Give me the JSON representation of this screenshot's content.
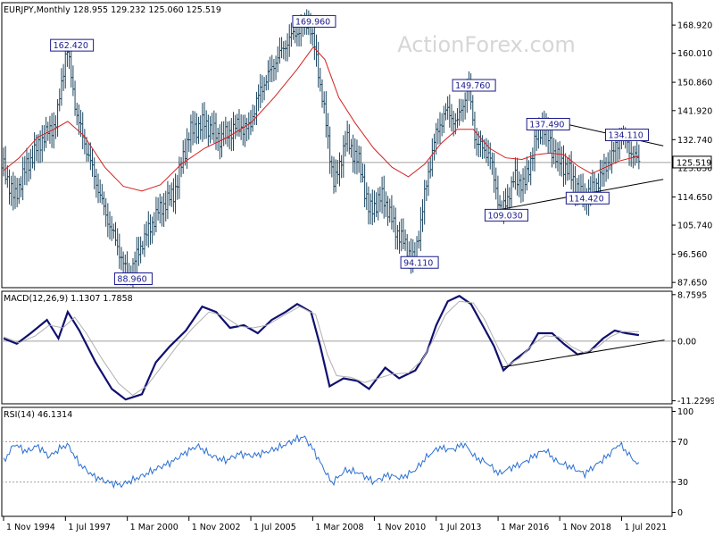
{
  "colors": {
    "bar": "#1c4660",
    "ma": "#d62020",
    "macd": "#101070",
    "signal": "#b0b0b0",
    "rsi": "#2b6fd1",
    "trend": "#000000",
    "annot_border": "#1a1a8c",
    "watermark": "#d6d6d6",
    "grid": "#a0a0a0"
  },
  "watermark": "ActionForex.com",
  "chart_data": [
    {
      "type": "ohlc",
      "title": "EURJPY,Monthly  128.955 129.232 125.060 125.519",
      "ylim": [
        86.0,
        176.0
      ],
      "y_ticks": [
        "168.920",
        "160.010",
        "150.860",
        "141.920",
        "132.740",
        "123.830",
        "114.650",
        "105.740",
        "96.560",
        "87.650"
      ],
      "y_tick_values": [
        168.92,
        160.01,
        150.86,
        141.92,
        132.74,
        123.83,
        114.65,
        105.74,
        96.56,
        87.65
      ],
      "current_price": "125.519",
      "current_value": 125.519,
      "price_path": [
        [
          1994.83,
          123.8
        ],
        [
          1995.3,
          114.0
        ],
        [
          1995.8,
          124.0
        ],
        [
          1996.5,
          133.0
        ],
        [
          1997.1,
          138.0
        ],
        [
          1997.55,
          162.42
        ],
        [
          1998.0,
          140.0
        ],
        [
          1998.6,
          125.0
        ],
        [
          1999.2,
          110.0
        ],
        [
          1999.8,
          98.0
        ],
        [
          2000.2,
          88.96
        ],
        [
          2000.8,
          100.0
        ],
        [
          2001.5,
          110.0
        ],
        [
          2002.2,
          116.0
        ],
        [
          2002.85,
          135.0
        ],
        [
          2003.5,
          138.0
        ],
        [
          2004.2,
          133.0
        ],
        [
          2004.9,
          137.0
        ],
        [
          2005.4,
          136.0
        ],
        [
          2005.9,
          148.0
        ],
        [
          2006.6,
          158.0
        ],
        [
          2007.2,
          165.0
        ],
        [
          2008.0,
          169.96
        ],
        [
          2008.3,
          160.0
        ],
        [
          2008.7,
          140.0
        ],
        [
          2009.1,
          118.0
        ],
        [
          2009.6,
          133.0
        ],
        [
          2010.2,
          125.0
        ],
        [
          2010.6,
          110.0
        ],
        [
          2011.2,
          115.0
        ],
        [
          2011.7,
          105.0
        ],
        [
          2012.2,
          99.0
        ],
        [
          2012.55,
          94.11
        ],
        [
          2013.0,
          115.0
        ],
        [
          2013.4,
          132.0
        ],
        [
          2013.9,
          142.0
        ],
        [
          2014.4,
          138.0
        ],
        [
          2014.9,
          149.76
        ],
        [
          2015.2,
          132.0
        ],
        [
          2015.8,
          128.0
        ],
        [
          2016.3,
          109.03
        ],
        [
          2016.9,
          121.0
        ],
        [
          2017.3,
          118.0
        ],
        [
          2017.8,
          133.0
        ],
        [
          2018.1,
          137.49
        ],
        [
          2018.6,
          128.0
        ],
        [
          2019.2,
          123.0
        ],
        [
          2019.8,
          114.42
        ],
        [
          2020.3,
          117.0
        ],
        [
          2020.8,
          124.0
        ],
        [
          2021.1,
          128.0
        ],
        [
          2021.5,
          134.11
        ],
        [
          2021.9,
          129.0
        ],
        [
          2022.25,
          125.519
        ]
      ],
      "moving_average": [
        [
          1994.83,
          123.0
        ],
        [
          1995.5,
          127.0
        ],
        [
          1996.3,
          133.5
        ],
        [
          1997.0,
          136.0
        ],
        [
          1997.6,
          138.5
        ],
        [
          1998.3,
          134.0
        ],
        [
          1999.2,
          124.0
        ],
        [
          2000.0,
          118.0
        ],
        [
          2000.8,
          116.5
        ],
        [
          2001.6,
          118.5
        ],
        [
          2002.5,
          125.0
        ],
        [
          2003.5,
          130.0
        ],
        [
          2004.5,
          133.5
        ],
        [
          2005.5,
          138.0
        ],
        [
          2006.5,
          146.0
        ],
        [
          2007.5,
          155.0
        ],
        [
          2008.2,
          162.0
        ],
        [
          2008.7,
          158.0
        ],
        [
          2009.3,
          146.0
        ],
        [
          2010.0,
          138.0
        ],
        [
          2010.8,
          130.0
        ],
        [
          2011.6,
          124.0
        ],
        [
          2012.3,
          121.0
        ],
        [
          2013.0,
          125.0
        ],
        [
          2013.7,
          131.5
        ],
        [
          2014.4,
          136.0
        ],
        [
          2015.1,
          136.0
        ],
        [
          2015.8,
          130.0
        ],
        [
          2016.5,
          127.0
        ],
        [
          2017.2,
          126.5
        ],
        [
          2017.8,
          128.0
        ],
        [
          2018.4,
          128.5
        ],
        [
          2019.0,
          128.0
        ],
        [
          2019.6,
          124.5
        ],
        [
          2020.2,
          122.0
        ],
        [
          2020.8,
          124.0
        ],
        [
          2021.4,
          126.0
        ],
        [
          2022.25,
          127.6
        ]
      ],
      "annotations": [
        {
          "label": "162.420",
          "x": 1997.55,
          "y": 162.42
        },
        {
          "label": "169.960",
          "x": 2008.0,
          "y": 169.96
        },
        {
          "label": "88.960",
          "x": 2000.2,
          "y": 88.96
        },
        {
          "label": "94.110",
          "x": 2012.55,
          "y": 94.11
        },
        {
          "label": "149.760",
          "x": 2014.9,
          "y": 149.76
        },
        {
          "label": "137.490",
          "x": 2018.1,
          "y": 137.49
        },
        {
          "label": "134.110",
          "x": 2021.5,
          "y": 134.11
        },
        {
          "label": "114.420",
          "x": 2019.8,
          "y": 114.42
        },
        {
          "label": "109.030",
          "x": 2016.3,
          "y": 109.03
        }
      ],
      "trendlines": [
        {
          "from": [
            2016.2,
            110.6
          ],
          "to": [
            2023.3,
            120.2
          ]
        },
        {
          "from": [
            2017.9,
            139.6
          ],
          "to": [
            2023.3,
            130.8
          ]
        }
      ]
    },
    {
      "type": "line",
      "title": "MACD(12,26,9) 1.1307 1.7858",
      "ylim": [
        -11.8,
        9.4
      ],
      "y_ticks": [
        "8.7595",
        "0.00",
        "-11.2299"
      ],
      "y_tick_values": [
        8.7595,
        0.0,
        -11.2299
      ],
      "zero_line": 0.0,
      "series": [
        {
          "role": "macd",
          "values": [
            [
              1994.83,
              0.5
            ],
            [
              1995.4,
              -0.5
            ],
            [
              1996.0,
              1.5
            ],
            [
              1996.7,
              4.0
            ],
            [
              1997.2,
              0.5
            ],
            [
              1997.6,
              5.5
            ],
            [
              1998.1,
              2.0
            ],
            [
              1998.8,
              -4.0
            ],
            [
              1999.5,
              -9.0
            ],
            [
              2000.1,
              -11.0
            ],
            [
              2000.8,
              -10.0
            ],
            [
              2001.4,
              -4.0
            ],
            [
              2002.0,
              -1.0
            ],
            [
              2002.7,
              2.0
            ],
            [
              2003.4,
              6.5
            ],
            [
              2004.0,
              5.5
            ],
            [
              2004.6,
              2.5
            ],
            [
              2005.2,
              3.0
            ],
            [
              2005.8,
              1.5
            ],
            [
              2006.4,
              4.0
            ],
            [
              2007.0,
              5.5
            ],
            [
              2007.5,
              7.0
            ],
            [
              2008.1,
              5.5
            ],
            [
              2008.5,
              -1.0
            ],
            [
              2008.9,
              -8.5
            ],
            [
              2009.5,
              -7.0
            ],
            [
              2010.1,
              -7.5
            ],
            [
              2010.6,
              -9.0
            ],
            [
              2011.3,
              -5.0
            ],
            [
              2011.9,
              -7.0
            ],
            [
              2012.6,
              -5.5
            ],
            [
              2013.1,
              -2.0
            ],
            [
              2013.5,
              3.0
            ],
            [
              2014.0,
              7.5
            ],
            [
              2014.5,
              8.5
            ],
            [
              2015.0,
              7.0
            ],
            [
              2015.5,
              3.0
            ],
            [
              2016.0,
              -1.0
            ],
            [
              2016.4,
              -5.5
            ],
            [
              2016.9,
              -3.5
            ],
            [
              2017.5,
              -1.5
            ],
            [
              2017.9,
              1.5
            ],
            [
              2018.5,
              1.5
            ],
            [
              2019.0,
              -0.5
            ],
            [
              2019.6,
              -2.5
            ],
            [
              2020.1,
              -2.0
            ],
            [
              2020.7,
              0.5
            ],
            [
              2021.2,
              2.0
            ],
            [
              2021.7,
              1.5
            ],
            [
              2022.25,
              1.1307
            ]
          ]
        },
        {
          "role": "signal",
          "values": [
            [
              1994.83,
              0.8
            ],
            [
              1995.5,
              -0.3
            ],
            [
              1996.2,
              1.0
            ],
            [
              1996.8,
              3.0
            ],
            [
              1997.4,
              2.5
            ],
            [
              1997.9,
              4.5
            ],
            [
              1998.4,
              1.5
            ],
            [
              1999.1,
              -3.5
            ],
            [
              1999.8,
              -8.0
            ],
            [
              2000.4,
              -10.2
            ],
            [
              2001.0,
              -8.5
            ],
            [
              2001.7,
              -4.5
            ],
            [
              2002.3,
              -1.0
            ],
            [
              2003.0,
              2.5
            ],
            [
              2003.7,
              5.5
            ],
            [
              2004.3,
              4.8
            ],
            [
              2005.0,
              2.8
            ],
            [
              2005.6,
              2.5
            ],
            [
              2006.2,
              3.0
            ],
            [
              2006.9,
              4.8
            ],
            [
              2007.6,
              6.5
            ],
            [
              2008.3,
              5.0
            ],
            [
              2008.8,
              -2.5
            ],
            [
              2009.2,
              -6.5
            ],
            [
              2009.8,
              -6.8
            ],
            [
              2010.4,
              -7.8
            ],
            [
              2011.0,
              -7.0
            ],
            [
              2011.6,
              -6.2
            ],
            [
              2012.3,
              -6.0
            ],
            [
              2012.9,
              -3.5
            ],
            [
              2013.4,
              0.5
            ],
            [
              2013.9,
              5.0
            ],
            [
              2014.5,
              7.5
            ],
            [
              2015.1,
              7.2
            ],
            [
              2015.6,
              4.0
            ],
            [
              2016.2,
              -1.5
            ],
            [
              2016.6,
              -4.5
            ],
            [
              2017.1,
              -3.2
            ],
            [
              2017.7,
              -0.5
            ],
            [
              2018.2,
              1.0
            ],
            [
              2018.8,
              0.8
            ],
            [
              2019.4,
              -1.2
            ],
            [
              2019.9,
              -2.2
            ],
            [
              2020.5,
              -1.0
            ],
            [
              2021.0,
              0.8
            ],
            [
              2021.5,
              1.8
            ],
            [
              2022.25,
              1.7858
            ]
          ]
        }
      ],
      "trendline": {
        "from": [
          2016.35,
          -4.9
        ],
        "to": [
          2023.35,
          0.2
        ]
      }
    },
    {
      "type": "line",
      "title": "RSI(14) 46.1314",
      "ylim": [
        -4,
        104
      ],
      "y_ticks": [
        "100",
        "70",
        "30",
        "0"
      ],
      "y_tick_values": [
        100,
        70,
        30,
        0
      ],
      "reference_lines": [
        70,
        30
      ],
      "series": [
        {
          "role": "rsi",
          "values": [
            [
              1994.83,
              50
            ],
            [
              1995.3,
              68
            ],
            [
              1995.8,
              60
            ],
            [
              1996.3,
              66
            ],
            [
              1996.8,
              55
            ],
            [
              1997.3,
              64
            ],
            [
              1997.6,
              67
            ],
            [
              1998.1,
              48
            ],
            [
              1998.7,
              36
            ],
            [
              1999.3,
              30
            ],
            [
              1999.9,
              27
            ],
            [
              2000.3,
              31
            ],
            [
              2000.9,
              37
            ],
            [
              2001.5,
              44
            ],
            [
              2002.1,
              50
            ],
            [
              2002.6,
              58
            ],
            [
              2003.2,
              66
            ],
            [
              2003.8,
              56
            ],
            [
              2004.4,
              51
            ],
            [
              2005.0,
              58
            ],
            [
              2005.6,
              56
            ],
            [
              2006.2,
              60
            ],
            [
              2006.8,
              65
            ],
            [
              2007.4,
              72
            ],
            [
              2007.8,
              75
            ],
            [
              2008.2,
              62
            ],
            [
              2008.6,
              45
            ],
            [
              2009.0,
              29
            ],
            [
              2009.6,
              42
            ],
            [
              2010.2,
              39
            ],
            [
              2010.8,
              30
            ],
            [
              2011.4,
              37
            ],
            [
              2012.0,
              34
            ],
            [
              2012.6,
              42
            ],
            [
              2013.1,
              55
            ],
            [
              2013.6,
              64
            ],
            [
              2014.2,
              62
            ],
            [
              2014.7,
              68
            ],
            [
              2015.2,
              54
            ],
            [
              2015.7,
              49
            ],
            [
              2016.2,
              38
            ],
            [
              2016.7,
              44
            ],
            [
              2017.2,
              48
            ],
            [
              2017.8,
              57
            ],
            [
              2018.2,
              62
            ],
            [
              2018.7,
              50
            ],
            [
              2019.3,
              45
            ],
            [
              2019.9,
              38
            ],
            [
              2020.4,
              47
            ],
            [
              2020.9,
              56
            ],
            [
              2021.4,
              68
            ],
            [
              2021.9,
              55
            ],
            [
              2022.25,
              46.13
            ]
          ]
        }
      ]
    }
  ],
  "x_axis": {
    "ticks": [
      "1 Nov 1994",
      "1 Jul 1997",
      "1 Mar 2000",
      "1 Nov 2002",
      "1 Jul 2005",
      "1 Mar 2008",
      "1 Nov 2010",
      "1 Jul 2013",
      "1 Mar 2016",
      "1 Nov 2018",
      "1 Jul 2021"
    ],
    "tick_values": [
      1994.83,
      1997.5,
      2000.17,
      2002.83,
      2005.5,
      2008.17,
      2010.83,
      2013.5,
      2016.17,
      2018.83,
      2021.5
    ]
  }
}
